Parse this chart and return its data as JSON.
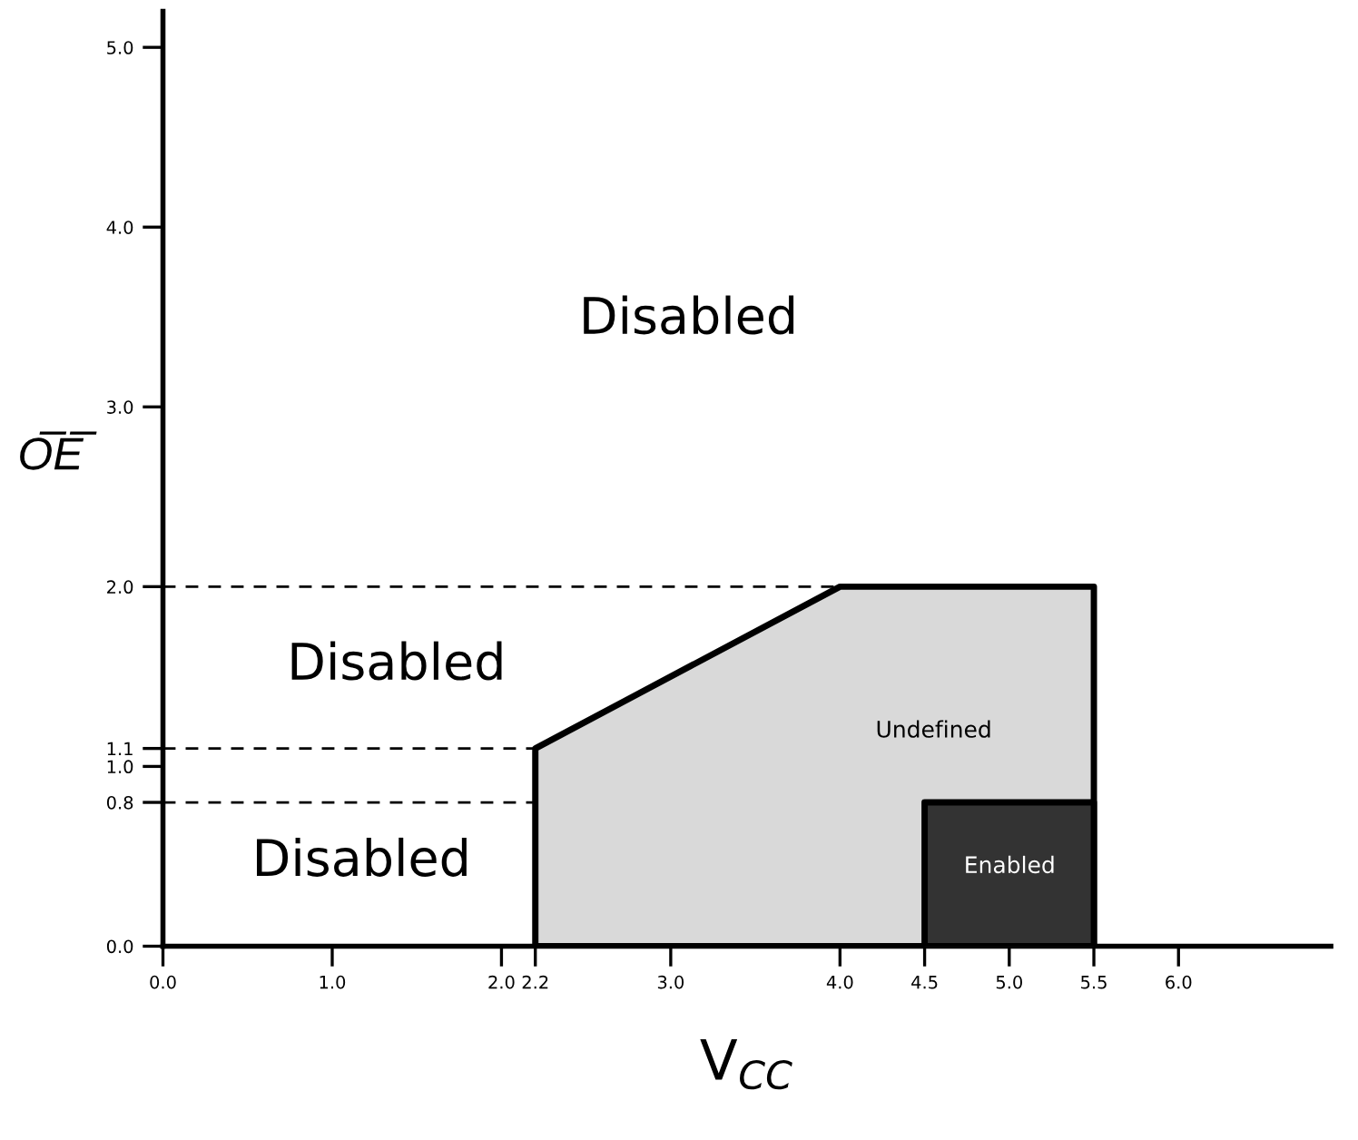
{
  "chart_data": {
    "type": "area",
    "xlabel": "V$_{CC}$",
    "ylabel": "O̅E̅",
    "series": [
      {
        "x": [
          2.2,
          2.2,
          4.0,
          5.5,
          5.5
        ],
        "values": [
          0,
          1.1,
          2.0,
          2.0,
          0
        ],
        "color": "#d9d9d9"
      },
      {
        "x": [
          4.5,
          4.5,
          5.5,
          5.5
        ],
        "values": [
          0,
          0.8,
          0.8,
          0
        ],
        "color": "#333333"
      }
    ],
    "xlim": [
      0,
      6.9
    ],
    "ylim": [
      0,
      5.2
    ],
    "xticks": [
      {
        "value": 0,
        "label": "0.0"
      },
      {
        "value": 1,
        "label": "1.0"
      },
      {
        "value": 2,
        "label": "2.0"
      },
      {
        "value": 2.2,
        "label": "2.2"
      },
      {
        "value": 3,
        "label": "3.0"
      },
      {
        "value": 4,
        "label": "4.0"
      },
      {
        "value": 4.5,
        "label": "4.5"
      },
      {
        "value": 5,
        "label": "5.0"
      },
      {
        "value": 5.5,
        "label": "5.5"
      },
      {
        "value": 6,
        "label": "6.0"
      }
    ],
    "yticks": [
      {
        "value": 0,
        "label": "0.0"
      },
      {
        "value": 0.8,
        "label": "0.8"
      },
      {
        "value": 1,
        "label": "1.0"
      },
      {
        "value": 1.1,
        "label": "1.1"
      },
      {
        "value": 2,
        "label": "2.0"
      },
      {
        "value": 3,
        "label": "3.0"
      },
      {
        "value": 4,
        "label": "4.0"
      },
      {
        "value": 5,
        "label": "5.0"
      }
    ],
    "ref_lines": [
      {
        "axis": "y",
        "value": 2.0,
        "line_style": "dashed",
        "color": "#000000"
      },
      {
        "axis": "y",
        "value": 1.1,
        "line_style": "dashed",
        "color": "#000000"
      },
      {
        "axis": "y",
        "value": 0.8,
        "line_style": "dashed",
        "color": "#000000"
      }
    ],
    "annotations": [
      "Disabled",
      "Disabled",
      "Disabled",
      "Undefined",
      "Enabled"
    ],
    "grid": false,
    "legend": false
  }
}
